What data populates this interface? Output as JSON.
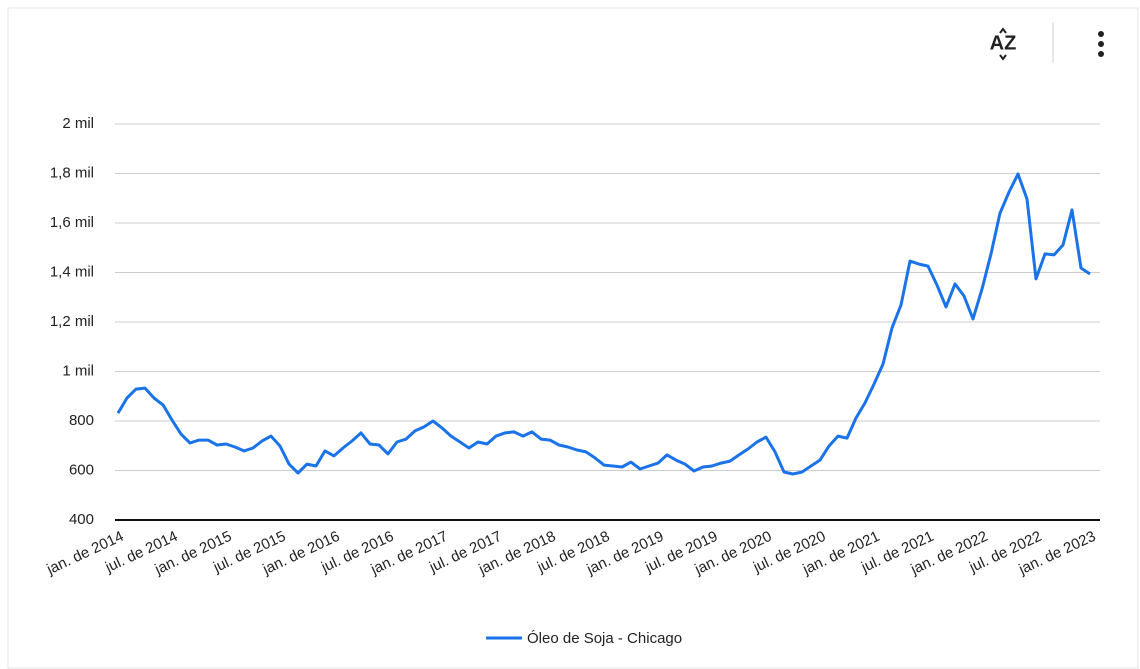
{
  "chart_data": {
    "type": "line",
    "categories": [
      "jan. de 2014",
      null,
      null,
      null,
      null,
      null,
      "jul. de 2014",
      null,
      null,
      null,
      null,
      null,
      "jan. de 2015",
      null,
      null,
      null,
      null,
      null,
      "jul. de 2015",
      null,
      null,
      null,
      null,
      null,
      "jan. de 2016",
      null,
      null,
      null,
      null,
      null,
      "jul. de 2016",
      null,
      null,
      null,
      null,
      null,
      "jan. de 2017",
      null,
      null,
      null,
      null,
      null,
      "jul. de 2017",
      null,
      null,
      null,
      null,
      null,
      "jan. de 2018",
      null,
      null,
      null,
      null,
      null,
      "jul. de 2018",
      null,
      null,
      null,
      null,
      null,
      "jan. de 2019",
      null,
      null,
      null,
      null,
      null,
      "jul. de 2019",
      null,
      null,
      null,
      null,
      null,
      "jan. de 2020",
      null,
      null,
      null,
      null,
      null,
      "jul. de 2020",
      null,
      null,
      null,
      null,
      null,
      "jan. de 2021",
      null,
      null,
      null,
      null,
      null,
      "jul. de 2021",
      null,
      null,
      null,
      null,
      null,
      "jan. de 2022",
      null,
      null,
      null,
      null,
      null,
      "jul. de 2022",
      null,
      null,
      null,
      null,
      null,
      "jan. de 2023"
    ],
    "series": [
      {
        "name": "Óleo de Soja - Chicago",
        "color": "#1a73e8",
        "values": [
          832,
          893,
          929,
          933,
          893,
          865,
          804,
          747,
          711,
          723,
          723,
          703,
          707,
          695,
          679,
          691,
          719,
          739,
          699,
          626,
          590,
          626,
          618,
          679,
          659,
          691,
          719,
          752,
          707,
          703,
          667,
          715,
          727,
          760,
          776,
          800,
          772,
          739,
          715,
          691,
          715,
          707,
          739,
          752,
          756,
          739,
          756,
          727,
          723,
          703,
          695,
          683,
          675,
          651,
          622,
          618,
          614,
          634,
          606,
          618,
          630,
          663,
          642,
          626,
          598,
          614,
          618,
          630,
          638,
          663,
          687,
          715,
          735,
          675,
          594,
          586,
          594,
          618,
          642,
          699,
          739,
          731,
          812,
          873,
          949,
          1030,
          1176,
          1269,
          1446,
          1434,
          1426,
          1349,
          1261,
          1354,
          1305,
          1212,
          1333,
          1475,
          1640,
          1725,
          1798,
          1697,
          1374,
          1475,
          1471,
          1511,
          1653,
          1418,
          1394
        ]
      }
    ],
    "ylim": [
      400,
      2000
    ],
    "yticks": [
      400,
      600,
      800,
      {
        "value": 1000,
        "label": "1 mil"
      },
      {
        "value": 1200,
        "label": "1,2 mil"
      },
      {
        "value": 1400,
        "label": "1,4 mil"
      },
      {
        "value": 1600,
        "label": "1,6 mil"
      },
      {
        "value": 1800,
        "label": "1,8 mil"
      },
      {
        "value": 2000,
        "label": "2 mil"
      }
    ],
    "grid": true,
    "legend": "bottom"
  }
}
